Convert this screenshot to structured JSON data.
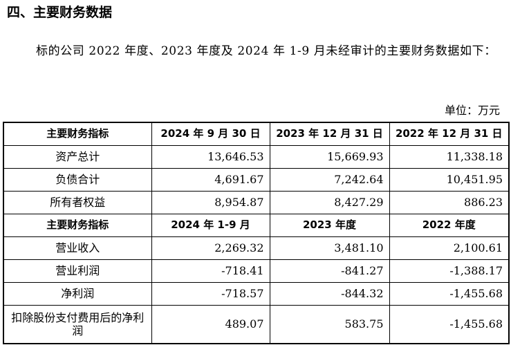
{
  "section": {
    "title": "四、主要财务数据",
    "intro": "标的公司 2022 年度、2023 年度及 2024 年 1-9 月未经审计的主要财务数据如下："
  },
  "unit_note": "单位：万元",
  "balance": {
    "headers": [
      "主要财务指标",
      "2024 年 9 月 30 日",
      "2023 年 12 月 31 日",
      "2022 年 12 月 31 日"
    ],
    "rows": [
      {
        "label": "资产总计",
        "values": [
          "13,646.53",
          "15,669.93",
          "11,338.18"
        ]
      },
      {
        "label": "负债合计",
        "values": [
          "4,691.67",
          "7,242.64",
          "10,451.95"
        ]
      },
      {
        "label": "所有者权益",
        "values": [
          "8,954.87",
          "8,427.29",
          "886.23"
        ]
      }
    ]
  },
  "income": {
    "headers": [
      "主要财务指标",
      "2024 年 1-9 月",
      "2023 年度",
      "2022 年度"
    ],
    "rows": [
      {
        "label": "营业收入",
        "values": [
          "2,269.32",
          "3,481.10",
          "2,100.61"
        ]
      },
      {
        "label": "营业利润",
        "values": [
          "-718.41",
          "-841.27",
          "-1,388.17"
        ]
      },
      {
        "label": "净利润",
        "values": [
          "-718.57",
          "-844.32",
          "-1,455.68"
        ]
      },
      {
        "label": "扣除股份支付费用后的净利润",
        "values": [
          "489.07",
          "583.75",
          "-1,455.68"
        ]
      }
    ]
  }
}
